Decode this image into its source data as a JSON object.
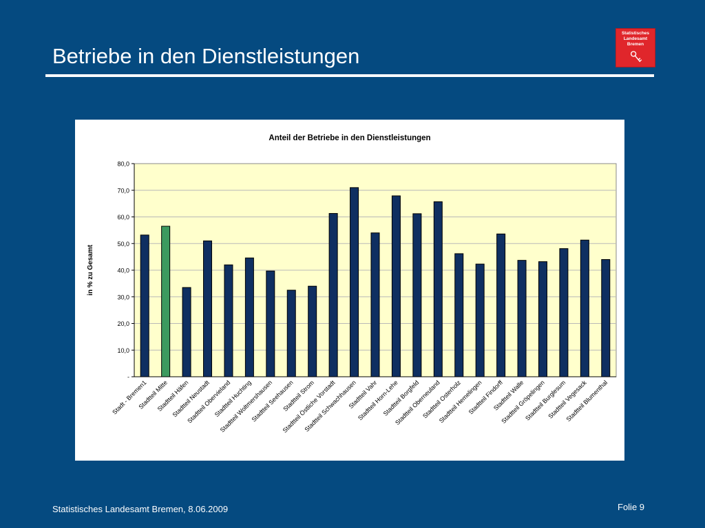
{
  "slide": {
    "title": "Betriebe in den Dienstleistungen",
    "footer_left": "Statistisches Landesamt Bremen, 8.06.2009",
    "footer_right": "Folie 9"
  },
  "logo": {
    "lines": [
      "Statistisches",
      "Landesamt",
      "Bremen"
    ]
  },
  "chart_data": {
    "type": "bar",
    "title": "Anteil der Betriebe in den Dienstleistungen",
    "xlabel": "",
    "ylabel": "in % zu Gesamt",
    "ylim": [
      0,
      80
    ],
    "yticks": [
      0,
      10,
      20,
      30,
      40,
      50,
      60,
      70,
      80
    ],
    "ytick_labels": [
      "-",
      "10,0",
      "20,0",
      "30,0",
      "40,0",
      "50,0",
      "60,0",
      "70,0",
      "80,0"
    ],
    "grid": true,
    "legend": "none",
    "categories": [
      "Stadt - Bremen1",
      "Stadtteil Mitte",
      "Stadtteil Häfen",
      "Stadtteil Neustadt",
      "Stadtteil Obervieland",
      "Stadtteil Huchting",
      "Stadtteil Woltmershausen",
      "Stadtteil Seehausen",
      "Stadtteil Strom",
      "Stadtteil Östliche Vorstadt",
      "Stadtteil Schwachhausen",
      "Stadtteil Vahr",
      "Stadtteil Horn-Lehe",
      "Stadtteil Borgfeld",
      "Stadtteil Oberneuland",
      "Stadtteil Osterholz",
      "Stadtteil Hemelingen",
      "Stadtteil Findorff",
      "Stadtteil Walle",
      "Stadtteil Gröpelingen",
      "Stadtteil Burglesum",
      "Stadtteil Vegesack",
      "Stadtteil Blumenthal"
    ],
    "values": [
      53.2,
      56.5,
      33.5,
      51.0,
      42.0,
      44.6,
      39.7,
      32.5,
      34.0,
      61.3,
      71.0,
      54.0,
      67.9,
      61.2,
      65.7,
      46.2,
      42.3,
      53.6,
      43.7,
      43.2,
      48.1,
      51.3,
      44.0
    ],
    "highlight_index": 1,
    "colors": {
      "bar": "#0f2f61",
      "highlight": "#3c9a5f",
      "plot_bg": "#ffffcc",
      "grid": "#b8b8b8"
    }
  }
}
